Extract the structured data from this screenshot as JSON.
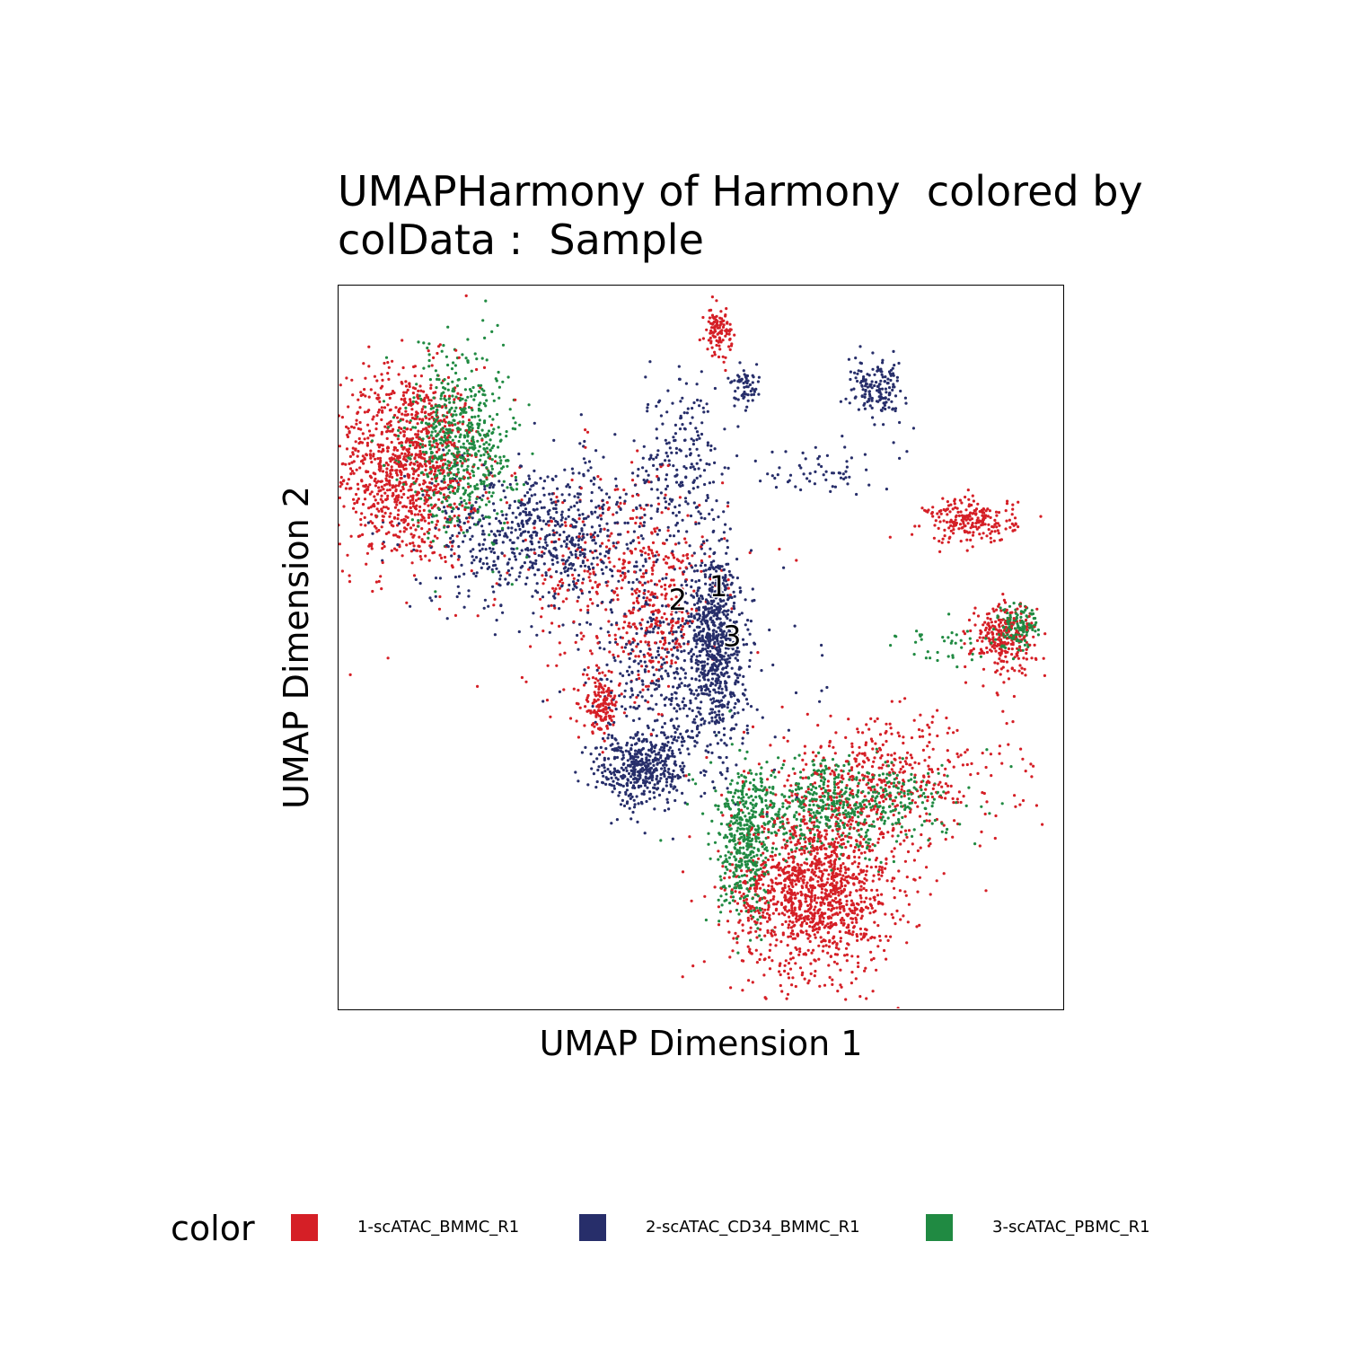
{
  "chart_data": {
    "type": "scatter",
    "title_lines": [
      "UMAPHarmony of Harmony  colored by",
      "colData :  Sample"
    ],
    "xlabel": "UMAP Dimension 1",
    "ylabel": "UMAP Dimension 2",
    "xlim": [
      -8,
      8
    ],
    "ylim": [
      -8,
      8
    ],
    "grid": false,
    "legend_title": "color",
    "legend_position": "bottom",
    "series": [
      {
        "name": "1-scATAC_BMMC_R1",
        "color": "#D51F26",
        "clusters": [
          {
            "x": -6.5,
            "y": 4.0,
            "sx": 0.8,
            "sy": 1.1,
            "n": 1100
          },
          {
            "x": 2.5,
            "y": -5.4,
            "sx": 0.9,
            "sy": 0.9,
            "n": 1300
          },
          {
            "x": 4.0,
            "y": -3.0,
            "sx": 1.4,
            "sy": 0.7,
            "n": 500
          },
          {
            "x": -1.0,
            "y": 0.6,
            "sx": 0.4,
            "sy": 0.8,
            "n": 180
          },
          {
            "x": -2.2,
            "y": -1.3,
            "sx": 0.2,
            "sy": 0.3,
            "n": 150
          },
          {
            "x": 0.4,
            "y": 7.0,
            "sx": 0.15,
            "sy": 0.25,
            "n": 110
          },
          {
            "x": 6.7,
            "y": 0.2,
            "sx": 0.35,
            "sy": 0.4,
            "n": 260
          },
          {
            "x": 6.0,
            "y": 2.8,
            "sx": 0.5,
            "sy": 0.25,
            "n": 220
          },
          {
            "x": -1.8,
            "y": 1.5,
            "sx": 1.2,
            "sy": 1.2,
            "n": 350
          }
        ]
      },
      {
        "name": "2-scATAC_CD34_BMMC_R1",
        "color": "#272E6A",
        "clusters": [
          {
            "x": -3.5,
            "y": 2.5,
            "sx": 1.2,
            "sy": 0.8,
            "n": 700
          },
          {
            "x": 0.3,
            "y": 0.3,
            "sx": 0.3,
            "sy": 1.0,
            "n": 650
          },
          {
            "x": -1.3,
            "y": -2.7,
            "sx": 0.5,
            "sy": 0.4,
            "n": 420
          },
          {
            "x": -0.5,
            "y": -0.8,
            "sx": 1.0,
            "sy": 1.2,
            "n": 500
          },
          {
            "x": 3.9,
            "y": 5.7,
            "sx": 0.3,
            "sy": 0.3,
            "n": 160
          },
          {
            "x": 1.0,
            "y": 5.7,
            "sx": 0.15,
            "sy": 0.2,
            "n": 60
          },
          {
            "x": -0.4,
            "y": 4.0,
            "sx": 0.5,
            "sy": 1.0,
            "n": 220
          },
          {
            "x": 2.7,
            "y": 4.0,
            "sx": 0.6,
            "sy": 0.3,
            "n": 60
          }
        ]
      },
      {
        "name": "3-scATAC_PBMC_R1",
        "color": "#208A42",
        "clusters": [
          {
            "x": -5.3,
            "y": 4.5,
            "sx": 0.6,
            "sy": 1.0,
            "n": 650
          },
          {
            "x": 3.0,
            "y": -3.5,
            "sx": 1.2,
            "sy": 0.5,
            "n": 600
          },
          {
            "x": 1.0,
            "y": -4.5,
            "sx": 0.3,
            "sy": 0.8,
            "n": 400
          },
          {
            "x": 7.0,
            "y": 0.5,
            "sx": 0.25,
            "sy": 0.25,
            "n": 140
          },
          {
            "x": 5.5,
            "y": 0.1,
            "sx": 0.6,
            "sy": 0.2,
            "n": 40
          }
        ]
      }
    ],
    "annotations": [
      {
        "text": "1",
        "x": 0.4,
        "y": 1.3
      },
      {
        "text": "2",
        "x": -0.5,
        "y": 1.0
      },
      {
        "text": "3",
        "x": 0.7,
        "y": 0.2
      }
    ]
  }
}
